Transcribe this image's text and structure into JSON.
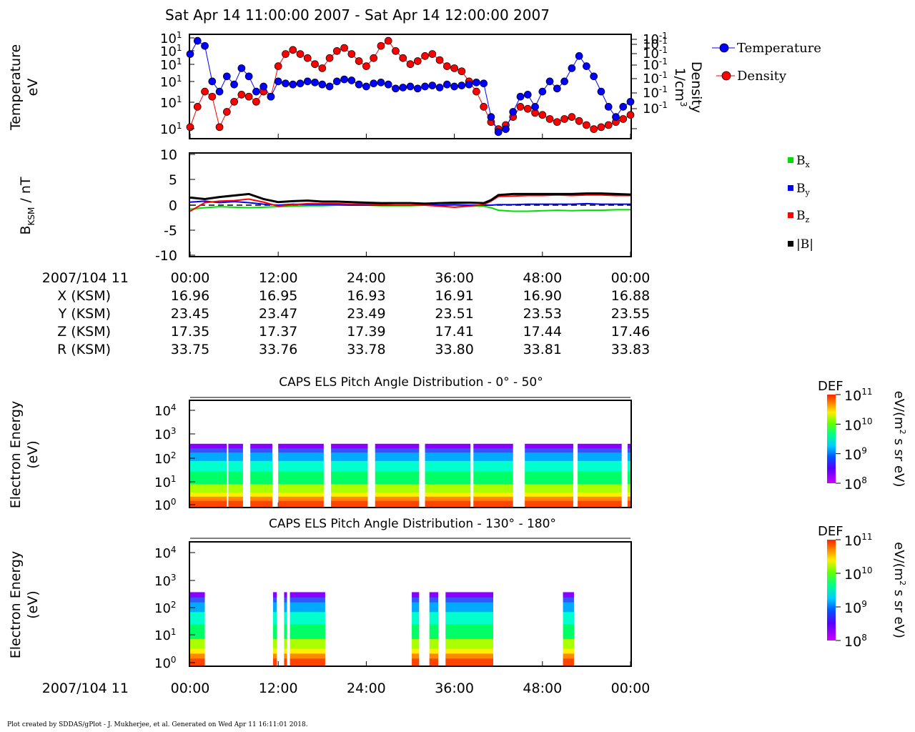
{
  "header": {
    "title": "Sat Apr 14 11:00:00 2007 - Sat Apr 14 12:00:00 2007"
  },
  "footer": {
    "credit": "Plot created by SDDAS/gPlot - J. Mukherjee, et al.  Generated on Wed Apr 11 16:11:01 2018."
  },
  "colors": {
    "temperature": "#0000ff",
    "density": "#ff0000",
    "bx": "#00dd00",
    "by": "#0000ff",
    "bz": "#ff0000",
    "btot": "#000000"
  },
  "time_axis": {
    "tick_labels": [
      "00:00",
      "12:00",
      "24:00",
      "36:00",
      "48:00",
      "00:00"
    ],
    "date_label": "2007/104 11"
  },
  "ephemeris": {
    "rows": [
      {
        "label": "X (KSM)",
        "values": [
          "16.96",
          "16.95",
          "16.93",
          "16.91",
          "16.90",
          "16.88"
        ]
      },
      {
        "label": "Y (KSM)",
        "values": [
          "23.45",
          "23.47",
          "23.49",
          "23.51",
          "23.53",
          "23.55"
        ]
      },
      {
        "label": "Z (KSM)",
        "values": [
          "17.35",
          "17.37",
          "17.39",
          "17.41",
          "17.44",
          "17.46"
        ]
      },
      {
        "label": "R (KSM)",
        "values": [
          "33.75",
          "33.76",
          "33.78",
          "33.80",
          "33.81",
          "33.83"
        ]
      }
    ]
  },
  "panel1": {
    "ylabel_line1": "Temperature",
    "ylabel_line2": "eV",
    "left_tick_labels": [
      "10",
      "10",
      "10",
      "10",
      "10",
      "10",
      "10"
    ],
    "left_tick_exps": [
      "1",
      "1",
      "1",
      "1",
      "1",
      "1",
      "1"
    ],
    "right_tick_labels": [
      "10",
      "10",
      "10",
      "10",
      "10",
      "10",
      "10"
    ],
    "right_tick_exps": [
      "-1",
      "-1",
      "-1",
      "-1",
      "-1",
      "-1",
      "-1"
    ],
    "right_label_line1": "Density",
    "right_label_line2": "1/cm",
    "right_label_sup": "3",
    "legend": [
      "Temperature",
      "Density"
    ]
  },
  "panel2": {
    "ylabel_main": "B",
    "ylabel_sub": "KSM",
    "ylabel_unit": " / nT",
    "tick_labels": [
      "10",
      "5",
      "0",
      "-5",
      "-10"
    ],
    "legend": [
      {
        "base": "B",
        "sub": "x"
      },
      {
        "base": "B",
        "sub": "y"
      },
      {
        "base": "B",
        "sub": "z"
      },
      {
        "base": "|B|",
        "sub": ""
      }
    ]
  },
  "panel3": {
    "title": "CAPS ELS Pitch Angle Distribution - 0° - 50°",
    "ylabel_line1": "Electron Energy",
    "ylabel_line2": "(eV)"
  },
  "panel4": {
    "title": "CAPS ELS Pitch Angle Distribution - 130° - 180°",
    "ylabel_line1": "Electron Energy",
    "ylabel_line2": "(eV)"
  },
  "spectrogram_axis": {
    "tick_base": "10",
    "tick_exps": [
      "4",
      "3",
      "2",
      "1",
      "0"
    ]
  },
  "colorbar": {
    "label": "DEF",
    "tick_base": "10",
    "tick_exps": [
      "11",
      "10",
      "9",
      "8"
    ],
    "unit_prefix": "eV/(m",
    "unit_sup": "2",
    "unit_suffix": " s sr eV)"
  },
  "chart_data": [
    {
      "type": "line",
      "title": "",
      "x_unit": "minutes after 11:00",
      "xlim": [
        0,
        60
      ],
      "series": [
        {
          "name": "Temperature",
          "x": [
            0,
            1,
            2,
            3,
            4,
            5,
            6,
            7,
            8,
            9,
            10,
            11,
            12,
            13,
            14,
            15,
            16,
            17,
            18,
            19,
            20,
            21,
            22,
            23,
            24,
            25,
            26,
            27,
            28,
            29,
            30,
            31,
            32,
            33,
            34,
            35,
            36,
            37,
            38,
            39,
            40,
            41,
            42,
            43,
            44,
            45,
            46,
            47,
            48,
            49,
            50,
            51,
            52,
            53,
            54,
            55,
            56,
            57,
            58,
            59,
            60
          ],
          "y_rel": [
            0.82,
            0.95,
            0.9,
            0.55,
            0.45,
            0.6,
            0.52,
            0.68,
            0.6,
            0.45,
            0.5,
            0.4,
            0.55,
            0.53,
            0.52,
            0.53,
            0.55,
            0.54,
            0.52,
            0.5,
            0.55,
            0.57,
            0.56,
            0.52,
            0.5,
            0.53,
            0.54,
            0.52,
            0.48,
            0.49,
            0.5,
            0.48,
            0.5,
            0.51,
            0.49,
            0.52,
            0.5,
            0.51,
            0.52,
            0.54,
            0.53,
            0.2,
            0.05,
            0.08,
            0.25,
            0.4,
            0.42,
            0.3,
            0.45,
            0.55,
            0.48,
            0.55,
            0.68,
            0.8,
            0.7,
            0.6,
            0.45,
            0.3,
            0.2,
            0.3,
            0.35
          ]
        },
        {
          "name": "Density",
          "x": [
            0,
            1,
            2,
            3,
            4,
            5,
            6,
            7,
            8,
            9,
            10,
            11,
            12,
            13,
            14,
            15,
            16,
            17,
            18,
            19,
            20,
            21,
            22,
            23,
            24,
            25,
            26,
            27,
            28,
            29,
            30,
            31,
            32,
            33,
            34,
            35,
            36,
            37,
            38,
            39,
            40,
            41,
            42,
            43,
            44,
            45,
            46,
            47,
            48,
            49,
            50,
            51,
            52,
            53,
            54,
            55,
            56,
            57,
            58,
            59,
            60
          ],
          "y_rel": [
            0.1,
            0.3,
            0.45,
            0.4,
            0.1,
            0.25,
            0.35,
            0.42,
            0.4,
            0.35,
            0.45,
            0.4,
            0.7,
            0.82,
            0.86,
            0.82,
            0.78,
            0.72,
            0.68,
            0.78,
            0.85,
            0.88,
            0.82,
            0.75,
            0.7,
            0.78,
            0.9,
            0.95,
            0.85,
            0.78,
            0.72,
            0.75,
            0.8,
            0.82,
            0.76,
            0.7,
            0.68,
            0.65,
            0.55,
            0.45,
            0.3,
            0.15,
            0.08,
            0.12,
            0.2,
            0.3,
            0.28,
            0.24,
            0.22,
            0.18,
            0.15,
            0.18,
            0.2,
            0.16,
            0.12,
            0.08,
            0.1,
            0.12,
            0.15,
            0.18,
            0.22
          ]
        }
      ]
    },
    {
      "type": "line",
      "ylim": [
        -10,
        10
      ],
      "xlim": [
        0,
        60
      ],
      "series": [
        {
          "name": "Bx",
          "x": [
            0,
            2,
            4,
            6,
            8,
            10,
            12,
            14,
            16,
            18,
            20,
            22,
            24,
            26,
            28,
            30,
            32,
            34,
            36,
            38,
            40,
            41,
            42,
            44,
            46,
            48,
            50,
            52,
            54,
            56,
            58,
            60
          ],
          "y": [
            -0.8,
            -0.5,
            -0.3,
            -0.4,
            -0.5,
            -0.4,
            -0.3,
            -0.2,
            -0.1,
            -0.1,
            0,
            0,
            0,
            -0.1,
            -0.1,
            -0.1,
            0,
            0,
            0,
            -0.1,
            -0.2,
            -0.5,
            -1.0,
            -1.2,
            -1.2,
            -1.1,
            -1.0,
            -1.1,
            -1.0,
            -1.0,
            -0.9,
            -0.9
          ]
        },
        {
          "name": "By",
          "x": [
            0,
            2,
            4,
            6,
            8,
            10,
            12,
            14,
            16,
            18,
            20,
            22,
            24,
            26,
            28,
            30,
            32,
            34,
            36,
            38,
            40,
            41,
            42,
            44,
            46,
            48,
            50,
            52,
            54,
            56,
            58,
            60
          ],
          "y": [
            0.6,
            0.8,
            0.5,
            0.7,
            0.5,
            0.2,
            0.0,
            0.2,
            0.1,
            0.1,
            0.1,
            0,
            0,
            0,
            0,
            0,
            0,
            0,
            0.1,
            0.0,
            0.0,
            0.0,
            0.1,
            0.1,
            0.2,
            0.2,
            0.2,
            0.2,
            0.3,
            0.2,
            0.2,
            0.2
          ]
        },
        {
          "name": "Bz",
          "x": [
            0,
            2,
            4,
            6,
            8,
            10,
            12,
            14,
            16,
            18,
            20,
            22,
            24,
            26,
            28,
            30,
            32,
            34,
            36,
            38,
            40,
            41,
            42,
            44,
            46,
            48,
            50,
            52,
            54,
            56,
            58,
            60
          ],
          "y": [
            -1.2,
            0.5,
            0.8,
            0.9,
            1.2,
            0.6,
            -0.2,
            0.1,
            0.3,
            0.3,
            0.3,
            0.2,
            0.2,
            0.1,
            0.0,
            0.0,
            0.0,
            -0.2,
            -0.4,
            -0.2,
            0.1,
            0.8,
            1.7,
            1.8,
            1.9,
            1.9,
            2.0,
            1.9,
            2.0,
            2.0,
            1.9,
            1.9
          ]
        },
        {
          "name": "|B|",
          "x": [
            0,
            2,
            4,
            6,
            8,
            10,
            12,
            14,
            16,
            18,
            20,
            22,
            24,
            26,
            28,
            30,
            32,
            34,
            36,
            38,
            40,
            41,
            42,
            44,
            46,
            48,
            50,
            52,
            54,
            56,
            58,
            60
          ],
          "y": [
            1.5,
            1.2,
            1.6,
            1.9,
            2.2,
            1.2,
            0.6,
            0.8,
            0.9,
            0.7,
            0.7,
            0.6,
            0.5,
            0.4,
            0.4,
            0.4,
            0.3,
            0.4,
            0.5,
            0.5,
            0.4,
            1.0,
            2.0,
            2.2,
            2.2,
            2.2,
            2.2,
            2.2,
            2.3,
            2.3,
            2.2,
            2.1
          ]
        }
      ]
    },
    {
      "type": "heatmap",
      "title": "CAPS ELS Pitch Angle Distribution - 0° - 50°",
      "xlim": [
        0,
        60
      ],
      "ylim_log10": [
        0,
        4.4
      ],
      "colorscale_log10": [
        8,
        11
      ],
      "data_intervals_min": [
        [
          0,
          5
        ],
        [
          5.2,
          7.2
        ],
        [
          8.2,
          11.2
        ],
        [
          12,
          18.2
        ],
        [
          19.2,
          24.2
        ],
        [
          25.2,
          31.2
        ],
        [
          32,
          38.2
        ],
        [
          38.6,
          44
        ],
        [
          45.6,
          52.2
        ],
        [
          52.8,
          58.8
        ],
        [
          59.6,
          60
        ]
      ]
    },
    {
      "type": "heatmap",
      "title": "CAPS ELS Pitch Angle Distribution - 130° - 180°",
      "xlim": [
        0,
        60
      ],
      "ylim_log10": [
        0,
        4.4
      ],
      "colorscale_log10": [
        8,
        11
      ],
      "data_intervals_min": [
        [
          0,
          2
        ],
        [
          11.3,
          11.8
        ],
        [
          12.8,
          13.2
        ],
        [
          13.6,
          18.4
        ],
        [
          30.2,
          31.2
        ],
        [
          32.6,
          33.8
        ],
        [
          34.8,
          41.3
        ],
        [
          50.8,
          52.3
        ]
      ]
    }
  ]
}
